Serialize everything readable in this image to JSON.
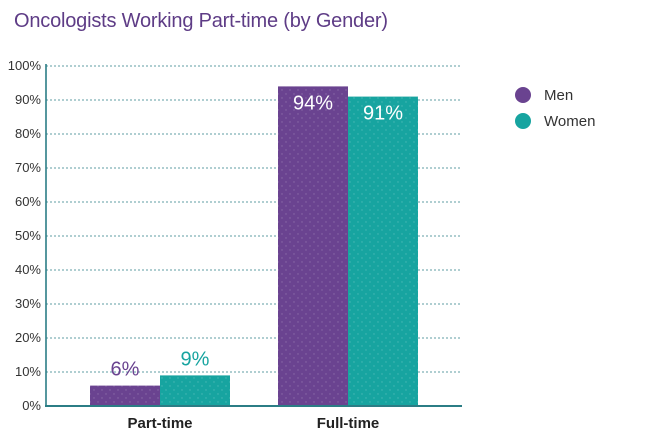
{
  "chart_data": {
    "type": "bar",
    "title": "Oncologists Working Part-time (by Gender)",
    "categories": [
      "Part-time",
      "Full-time"
    ],
    "series": [
      {
        "name": "Men",
        "values": [
          6,
          94
        ],
        "labels": [
          "6%",
          "94%"
        ],
        "color": "#6a4390"
      },
      {
        "name": "Women",
        "values": [
          9,
          91
        ],
        "labels": [
          "9%",
          "91%"
        ],
        "color": "#17a4a0"
      }
    ],
    "ylim": [
      0,
      100
    ],
    "yticks": [
      "0%",
      "10%",
      "20%",
      "30%",
      "40%",
      "50%",
      "60%",
      "70%",
      "80%",
      "90%",
      "100%"
    ],
    "grid": true,
    "legend_position": "top-right",
    "colors": {
      "title": "#5e3c86",
      "axis": "#2b7d85",
      "grid": "#2b7d85"
    }
  }
}
